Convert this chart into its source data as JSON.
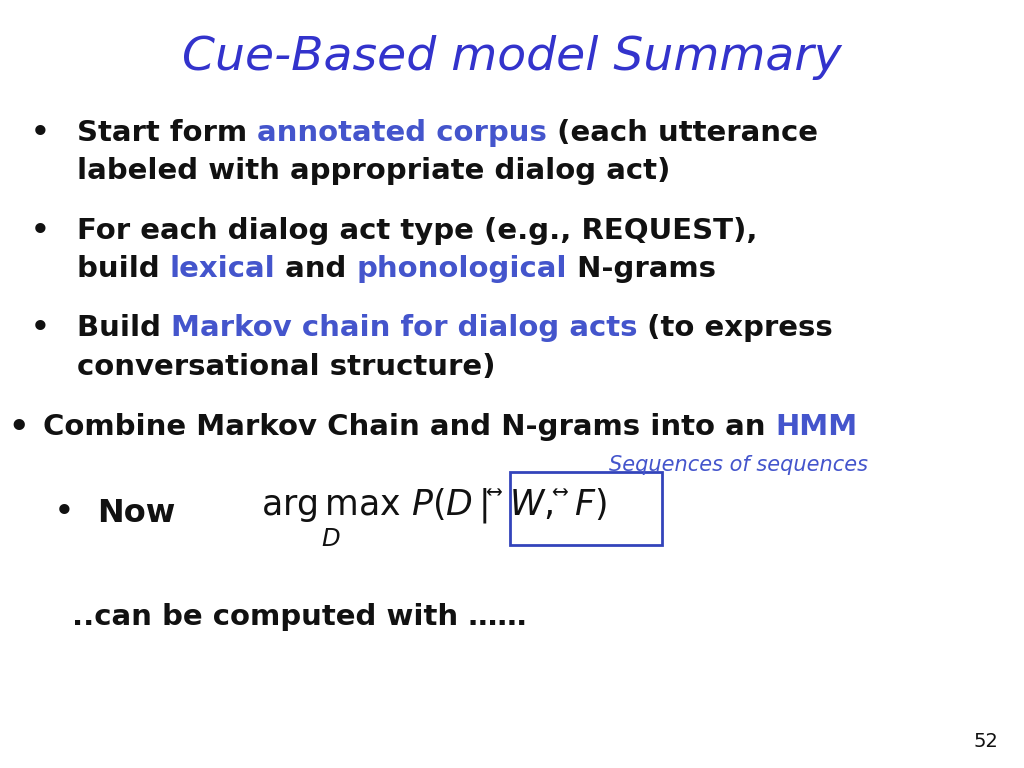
{
  "title": "Cue-Based model Summary",
  "title_color": "#3333CC",
  "title_fontsize": 34,
  "background_color": "#ffffff",
  "slide_number": "52",
  "black": "#111111",
  "blue": "#4455CC",
  "highlight_blue": "#3355BB",
  "body_fontsize": 21,
  "bullet1_line1": [
    "Start form ",
    "annotated corpus",
    " (each utterance"
  ],
  "bullet1_line2": [
    "labeled with appropriate dialog act)"
  ],
  "bullet2_line1": [
    "For each dialog act type (e.g., REQUEST),"
  ],
  "bullet2_line2": [
    "build ",
    "lexical",
    " and ",
    "phonological",
    " N-grams"
  ],
  "bullet3_line1": [
    "Build ",
    "Markov chain for dialog acts",
    " (to express"
  ],
  "bullet3_line2": [
    "conversational structure)"
  ],
  "bullet4": [
    "Combine Markov Chain and N-grams into an ",
    "HMM"
  ],
  "seq_label": "Sequences of sequences",
  "now_label": "Now",
  "computed_label": "..can be computed with ……"
}
